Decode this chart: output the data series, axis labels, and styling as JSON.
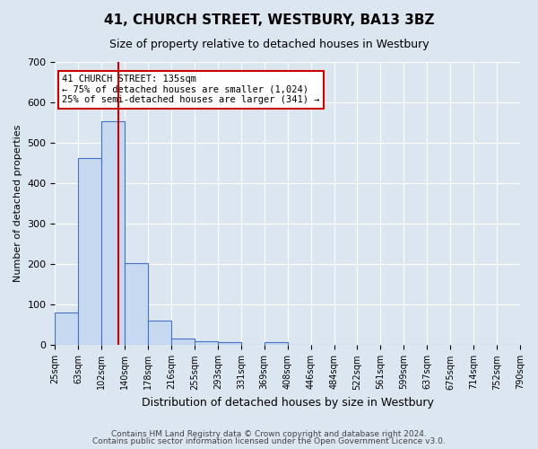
{
  "title": "41, CHURCH STREET, WESTBURY, BA13 3BZ",
  "subtitle": "Size of property relative to detached houses in Westbury",
  "xlabel": "Distribution of detached houses by size in Westbury",
  "ylabel": "Number of detached properties",
  "footer_line1": "Contains HM Land Registry data © Crown copyright and database right 2024.",
  "footer_line2": "Contains public sector information licensed under the Open Government Licence v3.0.",
  "bin_labels": [
    "25sqm",
    "63sqm",
    "102sqm",
    "140sqm",
    "178sqm",
    "216sqm",
    "255sqm",
    "293sqm",
    "331sqm",
    "369sqm",
    "408sqm",
    "446sqm",
    "484sqm",
    "522sqm",
    "561sqm",
    "599sqm",
    "637sqm",
    "675sqm",
    "714sqm",
    "752sqm",
    "790sqm"
  ],
  "bar_values": [
    80,
    462,
    554,
    203,
    60,
    17,
    9,
    8,
    0,
    8,
    0,
    0,
    0,
    0,
    0,
    0,
    0,
    0,
    0,
    0
  ],
  "bar_color": "#c6d9f0",
  "bar_edge_color": "#4472c4",
  "background_color": "#dce6f1",
  "grid_color": "#ffffff",
  "property_label": "41 CHURCH STREET: 135sqm",
  "annotation_line1": "← 75% of detached houses are smaller (1,024)",
  "annotation_line2": "25% of semi-detached houses are larger (341) →",
  "vline_color": "#cc0000",
  "vline_x": 2.74,
  "ylim": [
    0,
    700
  ],
  "yticks": [
    0,
    100,
    200,
    300,
    400,
    500,
    600,
    700
  ]
}
